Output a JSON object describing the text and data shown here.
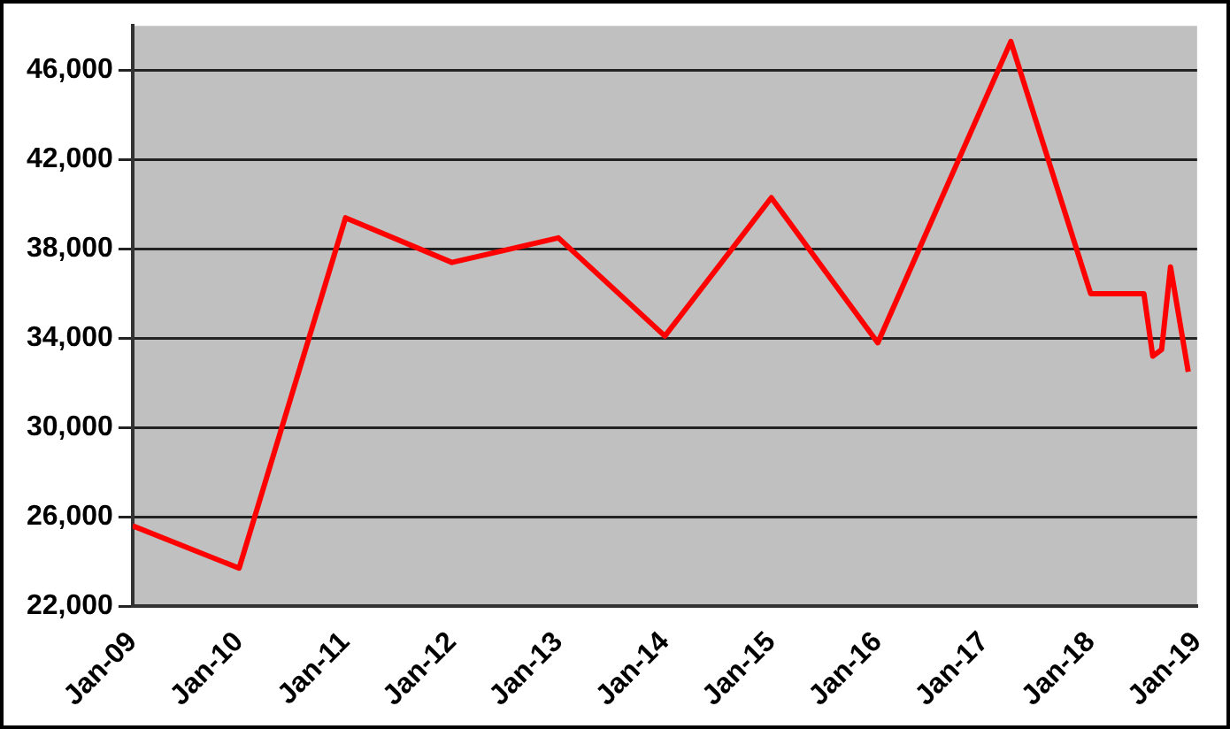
{
  "chart_data": {
    "type": "line",
    "x": [
      "2009-01",
      "2010-01",
      "2011-01",
      "2012-01",
      "2013-01",
      "2014-01",
      "2015-01",
      "2016-01",
      "2017-04",
      "2018-01",
      "2018-07",
      "2018-08",
      "2018-09",
      "2018-10",
      "2018-12"
    ],
    "series": [
      {
        "color": "#ff0000",
        "values": [
          25600,
          23700,
          39400,
          37400,
          38500,
          34100,
          40300,
          33800,
          47300,
          36000,
          36000,
          33200,
          33500,
          37200,
          32500
        ]
      }
    ],
    "xlim": [
      "2009-01",
      "2019-01"
    ],
    "xticks": [
      {
        "value": "2009-01",
        "label": "Jan-09"
      },
      {
        "value": "2010-01",
        "label": "Jan-10"
      },
      {
        "value": "2011-01",
        "label": "Jan-11"
      },
      {
        "value": "2012-01",
        "label": "Jan-12"
      },
      {
        "value": "2013-01",
        "label": "Jan-13"
      },
      {
        "value": "2014-01",
        "label": "Jan-14"
      },
      {
        "value": "2015-01",
        "label": "Jan-15"
      },
      {
        "value": "2016-01",
        "label": "Jan-16"
      },
      {
        "value": "2017-01",
        "label": "Jan-17"
      },
      {
        "value": "2018-01",
        "label": "Jan-18"
      },
      {
        "value": "2019-01",
        "label": "Jan-19"
      }
    ],
    "ylim": [
      22000,
      48000
    ],
    "yticks": [
      {
        "value": 22000,
        "label": "22,000"
      },
      {
        "value": 26000,
        "label": "26,000"
      },
      {
        "value": 30000,
        "label": "30,000"
      },
      {
        "value": 34000,
        "label": "34,000"
      },
      {
        "value": 38000,
        "label": "38,000"
      },
      {
        "value": 42000,
        "label": "42,000"
      },
      {
        "value": 46000,
        "label": "46,000"
      }
    ],
    "grid": "y",
    "legend": false,
    "marker": "none",
    "line_style": "solid"
  }
}
